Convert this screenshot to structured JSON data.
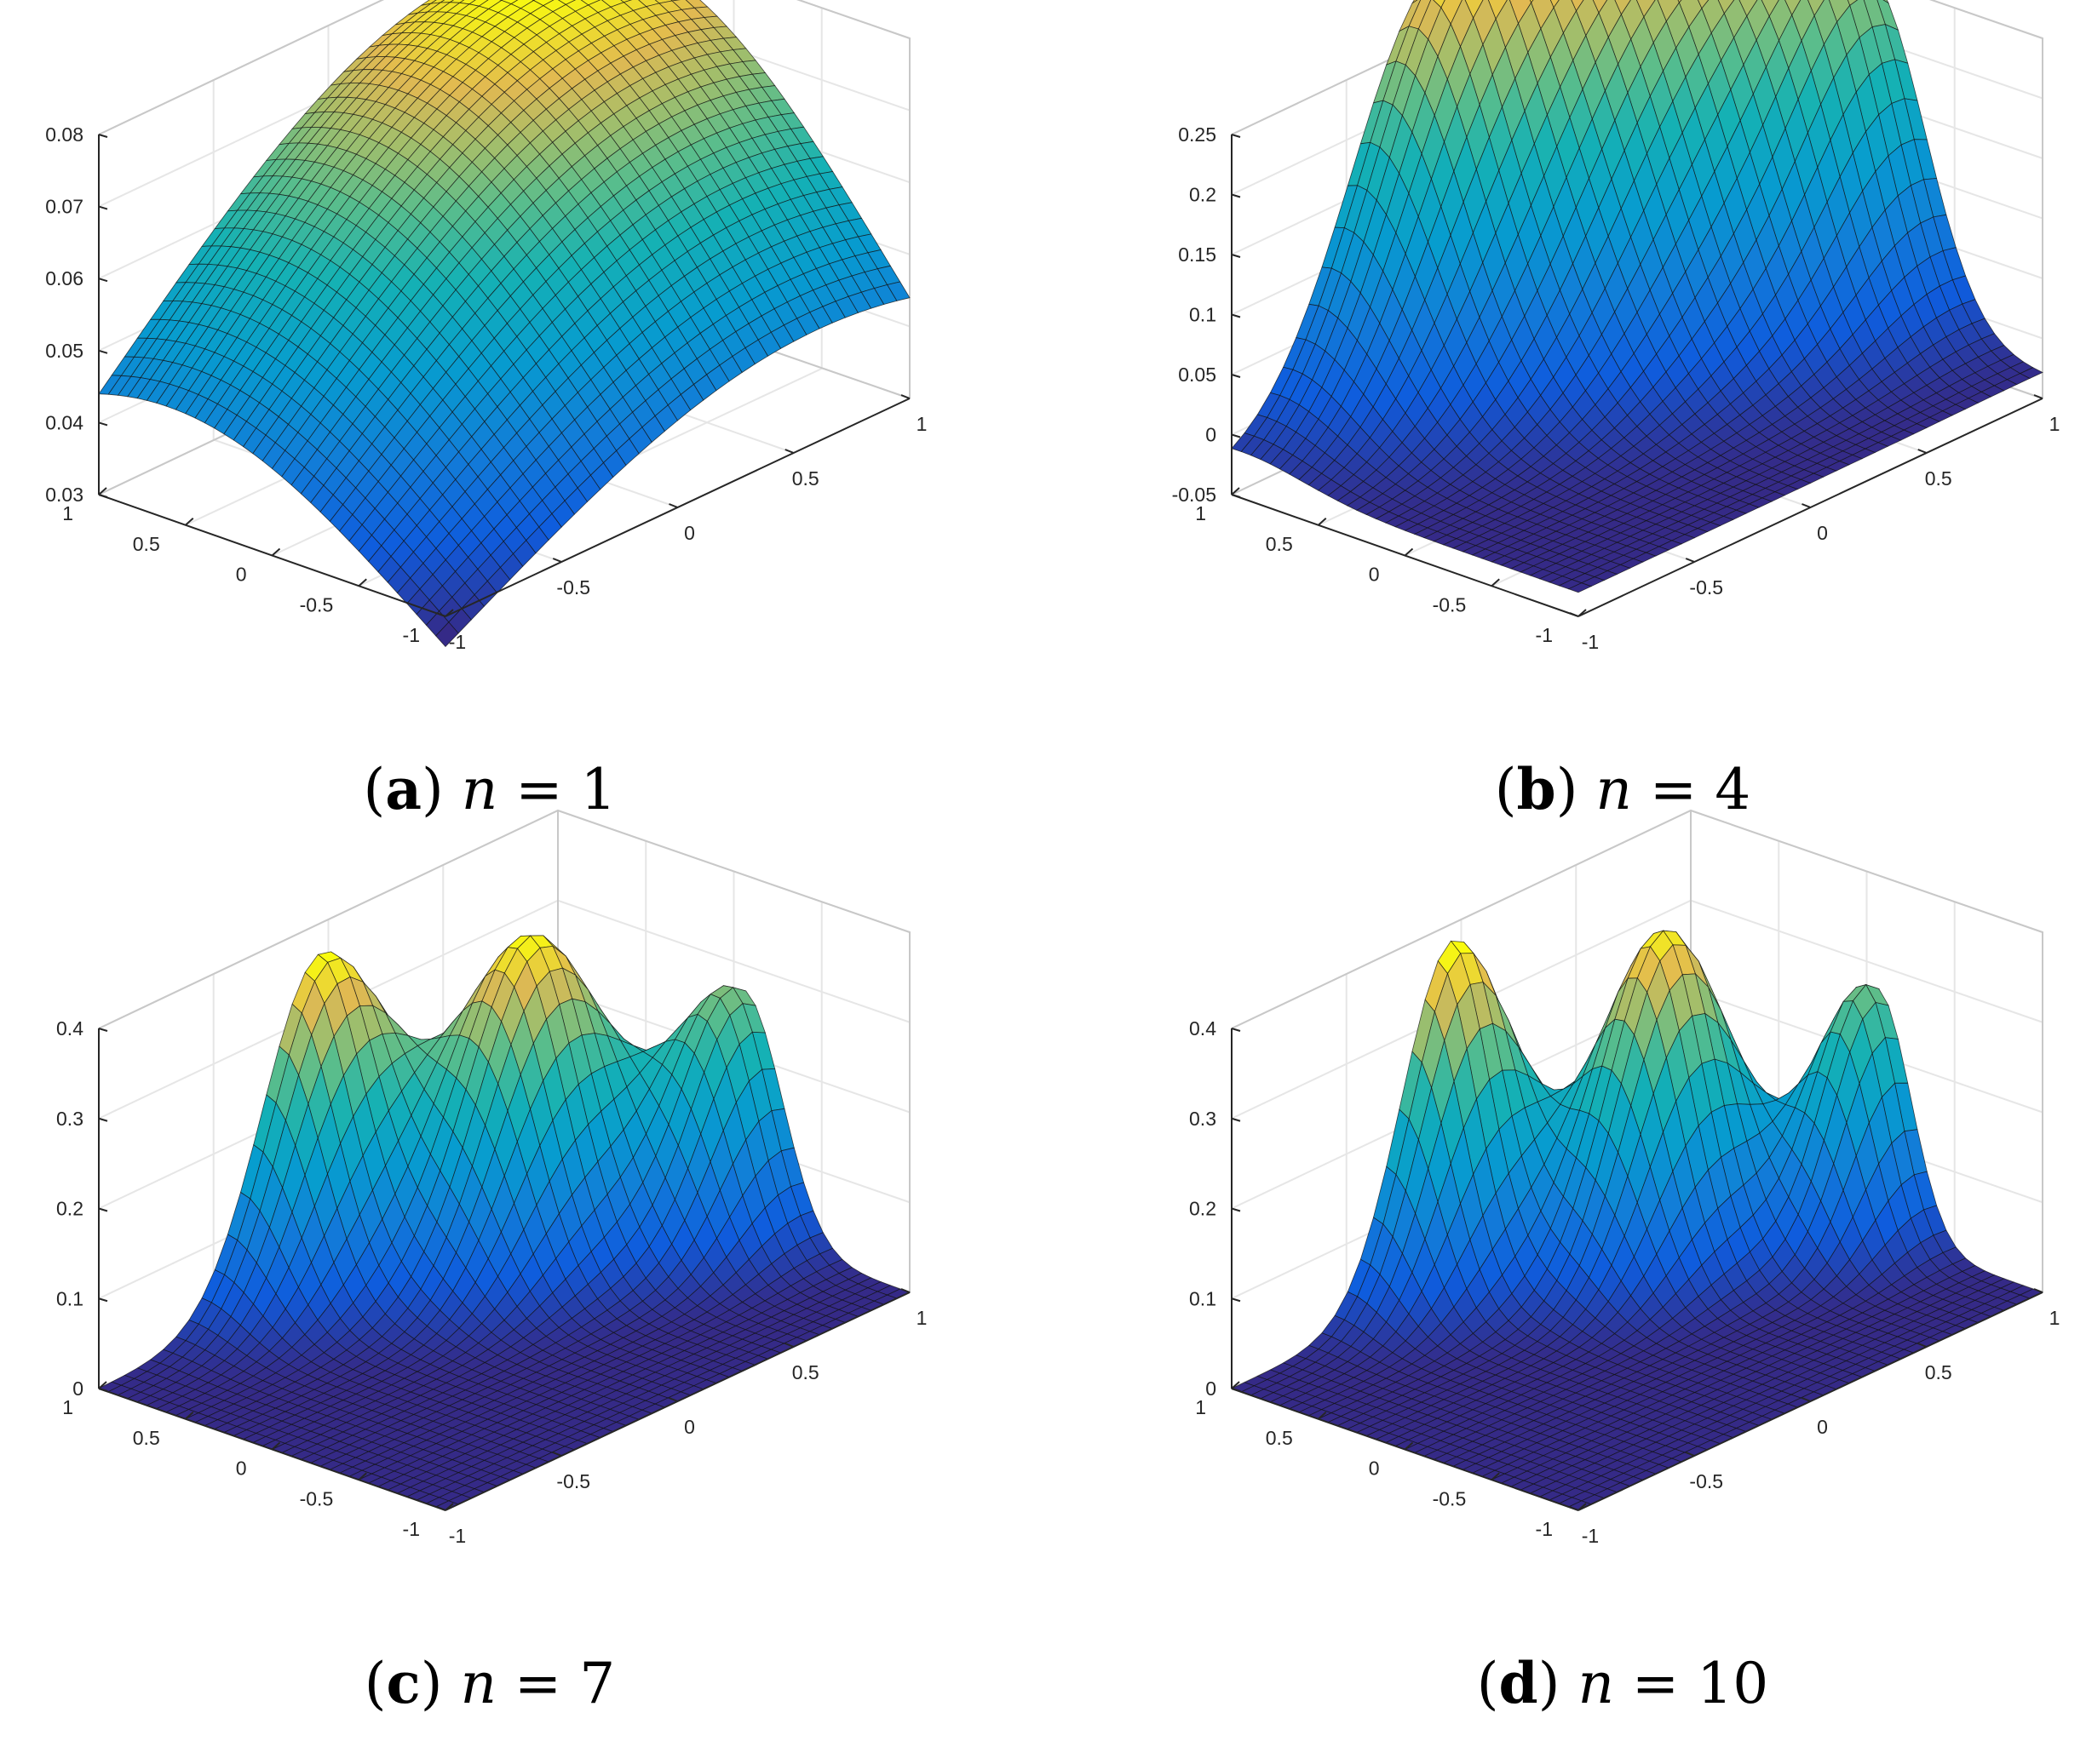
{
  "chart_data": [
    {
      "type": "surface",
      "panel": "a",
      "caption": {
        "tag": "a",
        "variable": "n",
        "equals": "=",
        "value": "1"
      },
      "n": 1,
      "xlim": [
        -1,
        1
      ],
      "ylim": [
        -1,
        1
      ],
      "zlim": [
        0.03,
        0.08
      ],
      "xticks": [
        "-1",
        "-0.5",
        "0",
        "0.5",
        "1"
      ],
      "yticks": [
        "-1",
        "-0.5",
        "0",
        "0.5",
        "1"
      ],
      "zticks": [
        {
          "value": 0.03,
          "label": "0.03"
        },
        {
          "value": 0.04,
          "label": "0.04"
        },
        {
          "value": 0.05,
          "label": "0.05"
        },
        {
          "value": 0.06,
          "label": "0.06"
        },
        {
          "value": 0.07,
          "label": "0.07"
        },
        {
          "value": 0.08,
          "label": "0.08"
        }
      ],
      "grid": true,
      "colormap": "parula",
      "surface_model": {
        "base": 0.0,
        "peaks": [
          {
            "x": 0.6,
            "y": 0.6,
            "height": 0.0805,
            "width": 1.5
          }
        ]
      }
    },
    {
      "type": "surface",
      "panel": "b",
      "caption": {
        "tag": "b",
        "variable": "n",
        "equals": "=",
        "value": "4"
      },
      "n": 4,
      "xlim": [
        -1,
        1
      ],
      "ylim": [
        -1,
        1
      ],
      "zlim": [
        -0.05,
        0.25
      ],
      "xticks": [
        "-1",
        "-0.5",
        "0",
        "0.5",
        "1"
      ],
      "yticks": [
        "-1",
        "-0.5",
        "0",
        "0.5",
        "1"
      ],
      "zticks": [
        {
          "value": -0.05,
          "label": "-0.05"
        },
        {
          "value": 0,
          "label": "0"
        },
        {
          "value": 0.05,
          "label": "0.05"
        },
        {
          "value": 0.1,
          "label": "0.1"
        },
        {
          "value": 0.15,
          "label": "0.15"
        },
        {
          "value": 0.2,
          "label": "0.2"
        },
        {
          "value": 0.25,
          "label": "0.25"
        }
      ],
      "grid": true,
      "colormap": "parula",
      "surface_model": {
        "base": -0.03,
        "peaks": [
          {
            "x": -0.15,
            "y": 0.95,
            "height": 0.3,
            "width": 0.36
          },
          {
            "x": 0.45,
            "y": 0.45,
            "height": 0.29,
            "width": 0.4
          },
          {
            "x": 0.95,
            "y": -0.05,
            "height": 0.23,
            "width": 0.3
          }
        ]
      }
    },
    {
      "type": "surface",
      "panel": "c",
      "caption": {
        "tag": "c",
        "variable": "n",
        "equals": "=",
        "value": "7"
      },
      "n": 7,
      "xlim": [
        -1,
        1
      ],
      "ylim": [
        -1,
        1
      ],
      "zlim": [
        0,
        0.4
      ],
      "xticks": [
        "-1",
        "-0.5",
        "0",
        "0.5",
        "1"
      ],
      "yticks": [
        "-1",
        "-0.5",
        "0",
        "0.5",
        "1"
      ],
      "zticks": [
        {
          "value": 0,
          "label": "0"
        },
        {
          "value": 0.1,
          "label": "0.1"
        },
        {
          "value": 0.2,
          "label": "0.2"
        },
        {
          "value": 0.3,
          "label": "0.3"
        },
        {
          "value": 0.4,
          "label": "0.4"
        }
      ],
      "grid": true,
      "colormap": "parula",
      "surface_model": {
        "base": 0.0,
        "peaks": [
          {
            "x": -0.05,
            "y": 1.0,
            "height": 0.36,
            "width": 0.25
          },
          {
            "x": 0.45,
            "y": 0.45,
            "height": 0.36,
            "width": 0.27
          },
          {
            "x": 0.95,
            "y": -0.05,
            "height": 0.27,
            "width": 0.22
          }
        ]
      }
    },
    {
      "type": "surface",
      "panel": "d",
      "caption": {
        "tag": "d",
        "variable": "n",
        "equals": "=",
        "value": "10"
      },
      "n": 10,
      "xlim": [
        -1,
        1
      ],
      "ylim": [
        -1,
        1
      ],
      "zlim": [
        0,
        0.4
      ],
      "xticks": [
        "-1",
        "-0.5",
        "0",
        "0.5",
        "1"
      ],
      "yticks": [
        "-1",
        "-0.5",
        "0",
        "0.5",
        "1"
      ],
      "zticks": [
        {
          "value": 0,
          "label": "0"
        },
        {
          "value": 0.1,
          "label": "0.1"
        },
        {
          "value": 0.2,
          "label": "0.2"
        },
        {
          "value": 0.3,
          "label": "0.3"
        },
        {
          "value": 0.4,
          "label": "0.4"
        }
      ],
      "grid": true,
      "colormap": "parula",
      "surface_model": {
        "base": 0.0,
        "peaks": [
          {
            "x": -0.05,
            "y": 1.0,
            "height": 0.38,
            "width": 0.22
          },
          {
            "x": 0.45,
            "y": 0.45,
            "height": 0.37,
            "width": 0.24
          },
          {
            "x": 0.95,
            "y": -0.05,
            "height": 0.28,
            "width": 0.19
          }
        ]
      }
    }
  ]
}
